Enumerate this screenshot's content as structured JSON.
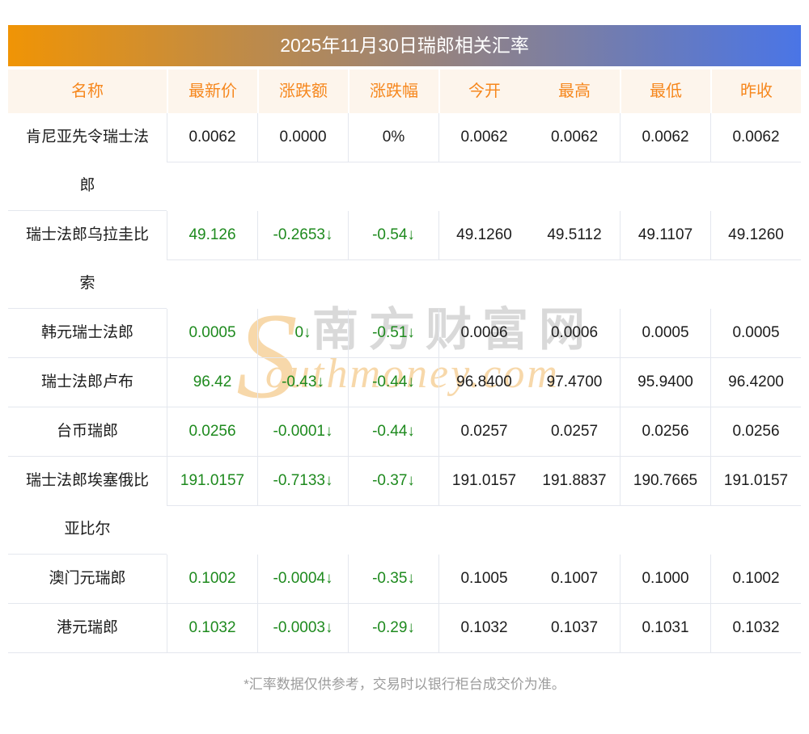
{
  "page": {
    "title": "2025年11月30日瑞郎相关汇率",
    "footer_note": "*汇率数据仅供参考，交易时以银行柜台成交价为准。"
  },
  "table": {
    "columns": [
      "名称",
      "最新价",
      "涨跌额",
      "涨跌幅",
      "今开",
      "最高",
      "最低",
      "昨收"
    ],
    "rows": [
      {
        "name": "肯尼亚先令瑞士法郎",
        "latest": "0.0062",
        "change": "0.0000",
        "change_pct": "0%",
        "open": "0.0062",
        "high": "0.0062",
        "low": "0.0062",
        "prev_close": "0.0062",
        "trend": "flat"
      },
      {
        "name": "瑞士法郎乌拉圭比索",
        "latest": "49.126",
        "change": "-0.2653↓",
        "change_pct": "-0.54↓",
        "open": "49.1260",
        "high": "49.5112",
        "low": "49.1107",
        "prev_close": "49.1260",
        "trend": "down"
      },
      {
        "name": "韩元瑞士法郎",
        "latest": "0.0005",
        "change": "0↓",
        "change_pct": "-0.51↓",
        "open": "0.0006",
        "high": "0.0006",
        "low": "0.0005",
        "prev_close": "0.0005",
        "trend": "down"
      },
      {
        "name": "瑞士法郎卢布",
        "latest": "96.42",
        "change": "-0.43↓",
        "change_pct": "-0.44↓",
        "open": "96.8400",
        "high": "97.4700",
        "low": "95.9400",
        "prev_close": "96.4200",
        "trend": "down"
      },
      {
        "name": "台币瑞郎",
        "latest": "0.0256",
        "change": "-0.0001↓",
        "change_pct": "-0.44↓",
        "open": "0.0257",
        "high": "0.0257",
        "low": "0.0256",
        "prev_close": "0.0256",
        "trend": "down"
      },
      {
        "name": "瑞士法郎埃塞俄比亚比尔",
        "latest": "191.0157",
        "change": "-0.7133↓",
        "change_pct": "-0.37↓",
        "open": "191.0157",
        "high": "191.8837",
        "low": "190.7665",
        "prev_close": "191.0157",
        "trend": "down"
      },
      {
        "name": "澳门元瑞郎",
        "latest": "0.1002",
        "change": "-0.0004↓",
        "change_pct": "-0.35↓",
        "open": "0.1005",
        "high": "0.1007",
        "low": "0.1000",
        "prev_close": "0.1002",
        "trend": "down"
      },
      {
        "name": "港元瑞郎",
        "latest": "0.1032",
        "change": "-0.0003↓",
        "change_pct": "-0.29↓",
        "open": "0.1032",
        "high": "0.1037",
        "low": "0.1031",
        "prev_close": "0.1032",
        "trend": "down"
      }
    ]
  },
  "watermark": {
    "initial": "S",
    "cn_text": "南方财富网",
    "en_text": "outhmoney.com"
  },
  "colors": {
    "gl": "#f09405",
    "gr": "#4a75e6",
    "header-bg": "#fdf5ec",
    "header-text": "#f6871d",
    "body-text": "#1c1c1c",
    "down-green": "#1e8a1e",
    "border": "#e4e7ee",
    "footer-text": "#9c9c9c",
    "wm-orange": "#f7d8aa",
    "wm-gray": "#d9d9d9"
  }
}
